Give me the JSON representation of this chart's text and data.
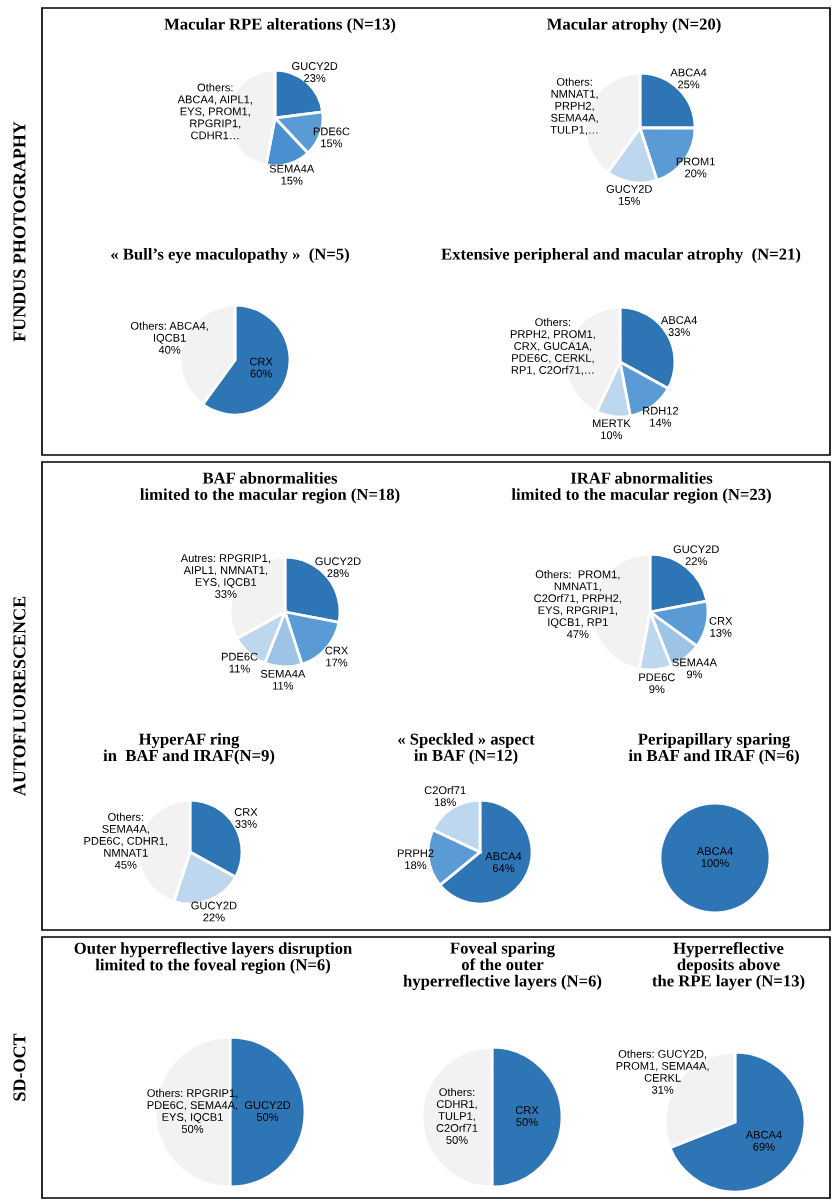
{
  "chart_data": [
    {
      "type": "other",
      "title": "FUNDUS PHOTOGRAPHY"
    },
    {
      "type": "pie",
      "title": "Macular RPE alterations (N=13)",
      "categories": [
        "GUCY2D",
        "PDE6C",
        "SEMA4A",
        "Others:\nABCA4, AIPL1,\nEYS, PROM1,\nRPGRIP1,\nCDHR1…"
      ],
      "values": [
        23,
        15,
        15,
        47
      ],
      "value_labels": [
        "23%",
        "15%",
        "15%",
        null
      ],
      "colors": [
        "#2e75b6",
        "#5b9bd5",
        "#4a90d0",
        "#f2f2f2"
      ]
    },
    {
      "type": "pie",
      "title": "Macular atrophy (N=20)",
      "categories": [
        "ABCA4",
        "PROM1",
        "GUCY2D",
        "Others:\nNMNAT1,\nPRPH2,\nSEMA4A,\nTULP1,…"
      ],
      "values": [
        25,
        20,
        15,
        40
      ],
      "value_labels": [
        "25%",
        "20%",
        "15%",
        null
      ],
      "colors": [
        "#2e75b6",
        "#5b9bd5",
        "#bdd7ee",
        "#f2f2f2"
      ]
    },
    {
      "type": "pie",
      "title": "« Bull’s eye maculopathy »  (N=5)",
      "categories": [
        "CRX",
        "Others: ABCA4,\nIQCB1"
      ],
      "values": [
        60,
        40
      ],
      "value_labels": [
        "60%",
        "40%"
      ],
      "colors": [
        "#2e75b6",
        "#f2f2f2"
      ]
    },
    {
      "type": "pie",
      "title": "Extensive peripheral and macular atrophy  (N=21)",
      "categories": [
        "ABCA4",
        "RDH12",
        "MERTK",
        "Others:\nPRPH2, PROM1,\nCRX, GUCA1A,\nPDE6C, CERKL,\nRP1, C2Orf71,…"
      ],
      "values": [
        33,
        14,
        10,
        43
      ],
      "value_labels": [
        "33%",
        "14%",
        "10%",
        null
      ],
      "colors": [
        "#2e75b6",
        "#5b9bd5",
        "#bdd7ee",
        "#f2f2f2"
      ]
    },
    {
      "type": "other",
      "title": "AUTOFLUORESCENCE"
    },
    {
      "type": "pie",
      "title": "BAF abnormalities\nlimited to the macular region (N=18)",
      "categories": [
        "GUCY2D",
        "CRX",
        "SEMA4A",
        "PDE6C",
        "Autres: RPGRIP1,\nAIPL1, NMNAT1,\nEYS, IQCB1"
      ],
      "values": [
        28,
        17,
        11,
        11,
        33
      ],
      "value_labels": [
        "28%",
        "17%",
        "11%",
        "11%",
        "33%"
      ],
      "colors": [
        "#2e75b6",
        "#5b9bd5",
        "#9dc3e6",
        "#bdd7ee",
        "#f2f2f2"
      ]
    },
    {
      "type": "pie",
      "title": "IRAF abnormalities\nlimited to the macular region (N=23)",
      "categories": [
        "GUCY2D",
        "CRX",
        "SEMA4A",
        "PDE6C",
        "Others:  PROM1,\nNMNAT1,\nC2Orf71, PRPH2,\nEYS, RPGRIP1,\nIQCB1, RP1"
      ],
      "values": [
        22,
        13,
        9,
        9,
        47
      ],
      "value_labels": [
        "22%",
        "13%",
        "9%",
        "9%",
        "47%"
      ],
      "colors": [
        "#2e75b6",
        "#5b9bd5",
        "#9dc3e6",
        "#bdd7ee",
        "#f2f2f2"
      ]
    },
    {
      "type": "pie",
      "title": "HyperAF ring\nin  BAF and IRAF(N=9)",
      "categories": [
        "CRX",
        "GUCY2D",
        "Others:\nSEMA4A,\nPDE6C, CDHR1,\nNMNAT1"
      ],
      "values": [
        33,
        22,
        45
      ],
      "value_labels": [
        "33%",
        "22%",
        "45%"
      ],
      "colors": [
        "#2e75b6",
        "#bdd7ee",
        "#f2f2f2"
      ]
    },
    {
      "type": "pie",
      "title": "« Speckled » aspect\nin BAF (N=12)",
      "categories": [
        "ABCA4",
        "PRPH2",
        "C2Orf71"
      ],
      "values": [
        64,
        18,
        18
      ],
      "value_labels": [
        "64%",
        "18%",
        "18%"
      ],
      "colors": [
        "#2e75b6",
        "#5b9bd5",
        "#bdd7ee"
      ]
    },
    {
      "type": "pie",
      "title": "Peripapillary sparing\nin BAF and IRAF (N=6)",
      "categories": [
        "ABCA4"
      ],
      "values": [
        100
      ],
      "value_labels": [
        "100%"
      ],
      "colors": [
        "#2e75b6"
      ]
    },
    {
      "type": "other",
      "title": "SD-OCT"
    },
    {
      "type": "pie",
      "title": "Outer hyperreflective layers disruption\nlimited to the foveal region (N=6)",
      "categories": [
        "GUCY2D",
        "Others: RPGRIP1,\nPDE6C, SEMA4A,\nEYS, IQCB1"
      ],
      "values": [
        50,
        50
      ],
      "value_labels": [
        "50%",
        "50%"
      ],
      "colors": [
        "#2e75b6",
        "#f2f2f2"
      ]
    },
    {
      "type": "pie",
      "title": "Foveal sparing\nof the outer\nhyperreflective layers (N=6)",
      "categories": [
        "CRX",
        "Others:\nCDHR1,\nTULP1,\nC2Orf71"
      ],
      "values": [
        50,
        50
      ],
      "value_labels": [
        "50%",
        "50%"
      ],
      "colors": [
        "#2e75b6",
        "#f2f2f2"
      ]
    },
    {
      "type": "pie",
      "title": "Hyperreflective\ndeposits above\nthe RPE layer (N=13)",
      "categories": [
        "ABCA4",
        "Others: GUCY2D,\nPROM1, SEMA4A,\nCERKL"
      ],
      "values": [
        69,
        31
      ],
      "value_labels": [
        "69%",
        "31%"
      ],
      "colors": [
        "#2e75b6",
        "#f2f2f2"
      ]
    }
  ]
}
